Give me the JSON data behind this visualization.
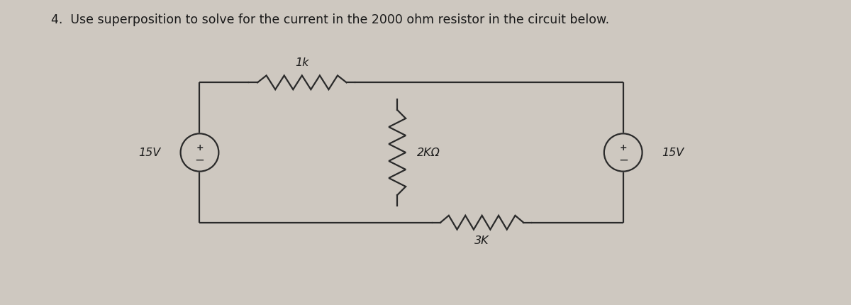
{
  "title": "4.  Use superposition to solve for the current in the 2000 ohm resistor in the circuit below.",
  "bg_color": "#cec8c0",
  "line_color": "#2a2a2a",
  "text_color": "#1a1a1a",
  "label_1k": "1k",
  "label_2k": "2KΩ",
  "label_3k": "3K",
  "label_15v_left": "15V",
  "label_15v_right": "15V",
  "title_fontsize": 12.5,
  "label_fontsize": 11.5
}
